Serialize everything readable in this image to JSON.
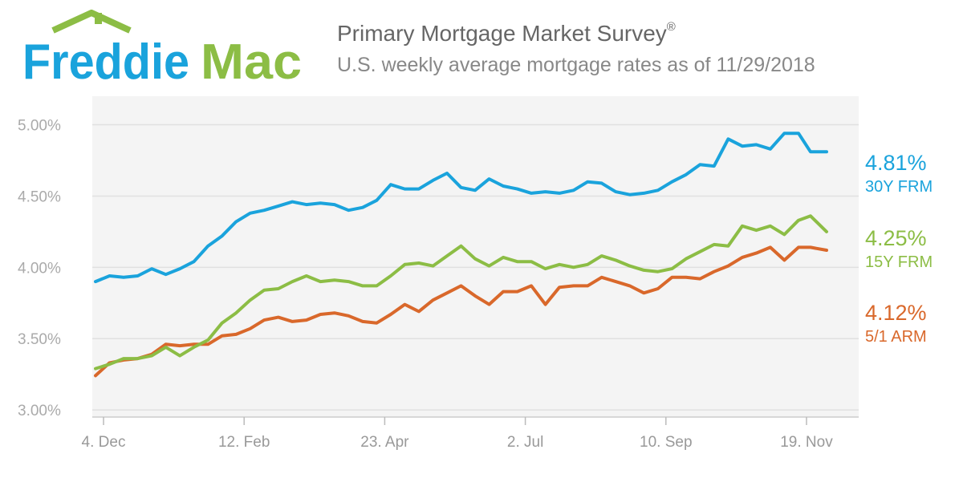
{
  "header": {
    "logo_text": "Freddie Mac",
    "title": "Primary Mortgage Market Survey",
    "title_mark": "®",
    "subtitle": "U.S. weekly average mortgage rates as of 11/29/2018"
  },
  "colors": {
    "blue": "#1aa3dc",
    "green": "#8cbd45",
    "orange": "#d9682b",
    "plot_bg": "#f4f4f4",
    "grid": "#e0e0e0"
  },
  "legend": [
    {
      "value": "4.81%",
      "label": "30Y FRM"
    },
    {
      "value": "4.25%",
      "label": "15Y FRM"
    },
    {
      "value": "4.12%",
      "label": "5/1 ARM"
    }
  ],
  "chart_data": {
    "type": "line",
    "title": "Primary Mortgage Market Survey",
    "subtitle": "U.S. weekly average mortgage rates as of 11/29/2018",
    "ylim": [
      3.0,
      5.2
    ],
    "yticks": [
      3.0,
      3.5,
      4.0,
      4.5,
      5.0
    ],
    "ytick_labels": [
      "3.00%",
      "3.50%",
      "4.00%",
      "4.50%",
      "5.00%"
    ],
    "xticks": [
      "4. Dec",
      "12. Feb",
      "23. Apr",
      "2. Jul",
      "10. Sep",
      "19. Nov"
    ],
    "xtick_dates": [
      "2017-12-04",
      "2018-02-12",
      "2018-04-23",
      "2018-07-02",
      "2018-09-10",
      "2018-11-19"
    ],
    "x": [
      "2017-11-30",
      "2017-12-07",
      "2017-12-14",
      "2017-12-21",
      "2017-12-28",
      "2018-01-04",
      "2018-01-11",
      "2018-01-18",
      "2018-01-25",
      "2018-02-01",
      "2018-02-08",
      "2018-02-15",
      "2018-02-22",
      "2018-03-01",
      "2018-03-08",
      "2018-03-15",
      "2018-03-22",
      "2018-03-29",
      "2018-04-05",
      "2018-04-12",
      "2018-04-19",
      "2018-04-26",
      "2018-05-03",
      "2018-05-10",
      "2018-05-17",
      "2018-05-24",
      "2018-05-31",
      "2018-06-07",
      "2018-06-14",
      "2018-06-21",
      "2018-06-28",
      "2018-07-05",
      "2018-07-12",
      "2018-07-19",
      "2018-07-26",
      "2018-08-02",
      "2018-08-09",
      "2018-08-16",
      "2018-08-23",
      "2018-08-30",
      "2018-09-06",
      "2018-09-13",
      "2018-09-20",
      "2018-09-27",
      "2018-10-04",
      "2018-10-11",
      "2018-10-18",
      "2018-10-25",
      "2018-11-01",
      "2018-11-08",
      "2018-11-15",
      "2018-11-21",
      "2018-11-29"
    ],
    "series": [
      {
        "name": "30Y FRM",
        "color": "#1aa3dc",
        "values": [
          3.9,
          3.94,
          3.93,
          3.94,
          3.99,
          3.95,
          3.99,
          4.04,
          4.15,
          4.22,
          4.32,
          4.38,
          4.4,
          4.43,
          4.46,
          4.44,
          4.45,
          4.44,
          4.4,
          4.42,
          4.47,
          4.58,
          4.55,
          4.55,
          4.61,
          4.66,
          4.56,
          4.54,
          4.62,
          4.57,
          4.55,
          4.52,
          4.53,
          4.52,
          4.54,
          4.6,
          4.59,
          4.53,
          4.51,
          4.52,
          4.54,
          4.6,
          4.65,
          4.72,
          4.71,
          4.9,
          4.85,
          4.86,
          4.83,
          4.94,
          4.94,
          4.81,
          4.81
        ]
      },
      {
        "name": "15Y FRM",
        "color": "#8cbd45",
        "values": [
          3.29,
          3.32,
          3.36,
          3.36,
          3.38,
          3.44,
          3.38,
          3.44,
          3.49,
          3.61,
          3.68,
          3.77,
          3.84,
          3.85,
          3.9,
          3.94,
          3.9,
          3.91,
          3.9,
          3.87,
          3.87,
          3.94,
          4.02,
          4.03,
          4.01,
          4.08,
          4.15,
          4.06,
          4.01,
          4.07,
          4.04,
          4.04,
          3.99,
          4.02,
          4.0,
          4.02,
          4.08,
          4.05,
          4.01,
          3.98,
          3.97,
          3.99,
          4.06,
          4.11,
          4.16,
          4.15,
          4.29,
          4.26,
          4.29,
          4.23,
          4.33,
          4.36,
          4.25
        ]
      },
      {
        "name": "5/1 ARM",
        "color": "#d9682b",
        "values": [
          3.24,
          3.33,
          3.35,
          3.36,
          3.39,
          3.46,
          3.45,
          3.46,
          3.46,
          3.52,
          3.53,
          3.57,
          3.63,
          3.65,
          3.62,
          3.63,
          3.67,
          3.68,
          3.66,
          3.62,
          3.61,
          3.67,
          3.74,
          3.69,
          3.77,
          3.82,
          3.87,
          3.8,
          3.74,
          3.83,
          3.83,
          3.87,
          3.74,
          3.86,
          3.87,
          3.87,
          3.93,
          3.9,
          3.87,
          3.82,
          3.85,
          3.93,
          3.93,
          3.92,
          3.97,
          4.01,
          4.07,
          4.1,
          4.14,
          4.05,
          4.14,
          4.14,
          4.12
        ]
      }
    ]
  }
}
